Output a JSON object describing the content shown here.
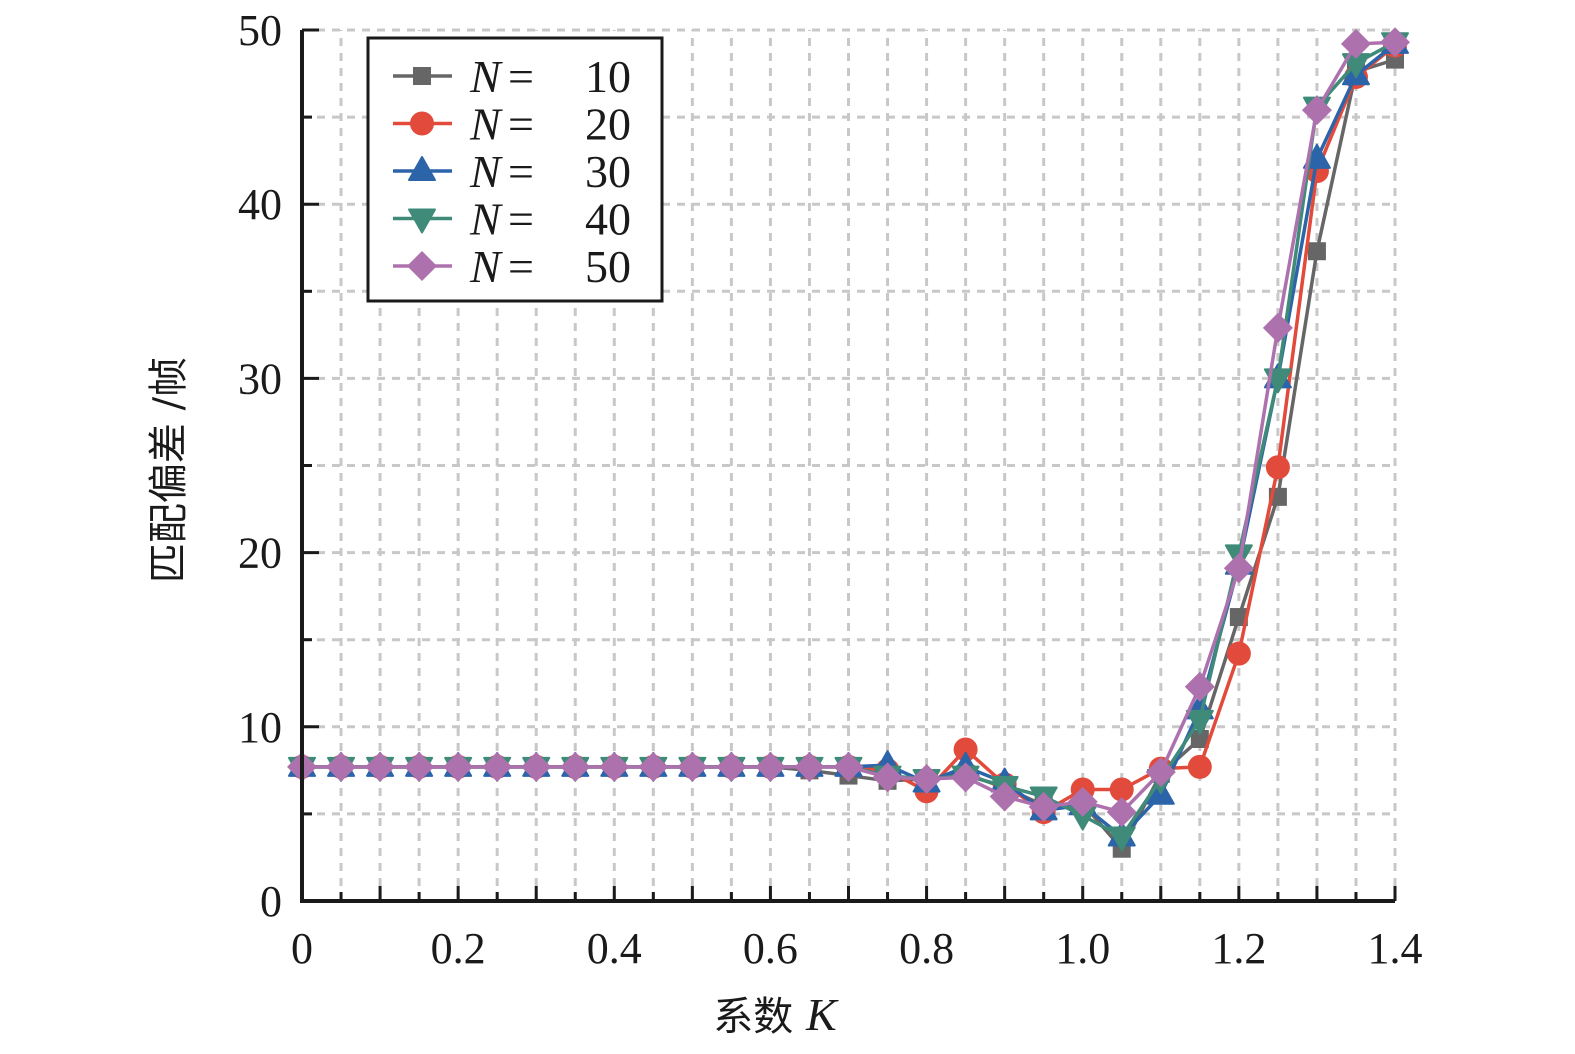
{
  "chart_data": {
    "type": "line",
    "title": "",
    "xlabel": "系数 K",
    "xlabel_parts": {
      "text": "系数 ",
      "var": "K"
    },
    "ylabel": "匹配偏差 /帧",
    "xlim": [
      0,
      1.4
    ],
    "ylim": [
      0,
      50
    ],
    "grid": true,
    "legend_position": "top-left",
    "x_ticks": [
      "0",
      "0.2",
      "0.4",
      "0.6",
      "0.8",
      "1.0",
      "1.2",
      "1.4"
    ],
    "x_tick_values": [
      0,
      0.2,
      0.4,
      0.6,
      0.8,
      1.0,
      1.2,
      1.4
    ],
    "y_ticks": [
      "0",
      "10",
      "20",
      "30",
      "40",
      "50"
    ],
    "y_tick_values": [
      0,
      10,
      20,
      30,
      40,
      50
    ],
    "x": [
      0,
      0.05,
      0.1,
      0.15,
      0.2,
      0.25,
      0.3,
      0.35,
      0.4,
      0.45,
      0.5,
      0.55,
      0.6,
      0.65,
      0.7,
      0.75,
      0.8,
      0.85,
      0.9,
      0.95,
      1.0,
      1.05,
      1.1,
      1.15,
      1.2,
      1.25,
      1.3,
      1.35,
      1.4
    ],
    "series": [
      {
        "name": "N = 10",
        "var": "N",
        "eq": "=",
        "num": "10",
        "color": "#666666",
        "marker": "square",
        "values": [
          7.7,
          7.7,
          7.7,
          7.7,
          7.7,
          7.7,
          7.7,
          7.7,
          7.7,
          7.7,
          7.7,
          7.7,
          7.7,
          7.5,
          7.2,
          6.9,
          7.0,
          7.3,
          6.5,
          5.5,
          5.6,
          3.0,
          7.3,
          9.3,
          16.3,
          23.2,
          37.3,
          47.6,
          48.3
        ]
      },
      {
        "name": "N = 20",
        "var": "N",
        "eq": "=",
        "num": "20",
        "color": "#e24a3b",
        "marker": "circle",
        "values": [
          7.7,
          7.7,
          7.7,
          7.7,
          7.7,
          7.7,
          7.7,
          7.7,
          7.7,
          7.7,
          7.7,
          7.7,
          7.7,
          7.7,
          7.7,
          7.5,
          6.3,
          8.7,
          6.7,
          5.1,
          6.4,
          6.4,
          7.6,
          7.7,
          14.2,
          24.9,
          41.9,
          47.3,
          49.1
        ]
      },
      {
        "name": "N = 30",
        "var": "N",
        "eq": "=",
        "num": "30",
        "color": "#2c64aa",
        "marker": "triangle-up",
        "values": [
          7.7,
          7.7,
          7.7,
          7.7,
          7.7,
          7.7,
          7.7,
          7.7,
          7.7,
          7.7,
          7.7,
          7.7,
          7.7,
          7.7,
          7.7,
          7.8,
          6.8,
          7.7,
          6.8,
          5.2,
          5.5,
          3.7,
          6.1,
          11.0,
          19.3,
          30.0,
          42.6,
          47.4,
          49.2
        ]
      },
      {
        "name": "N = 40",
        "var": "N",
        "eq": "=",
        "num": "40",
        "color": "#3f8a78",
        "marker": "triangle-down",
        "values": [
          7.7,
          7.7,
          7.7,
          7.7,
          7.7,
          7.7,
          7.7,
          7.7,
          7.7,
          7.7,
          7.7,
          7.7,
          7.7,
          7.7,
          7.7,
          7.2,
          7.0,
          7.2,
          6.6,
          6.0,
          4.9,
          3.7,
          7.0,
          10.4,
          19.9,
          30.0,
          45.6,
          48.1,
          49.3
        ]
      },
      {
        "name": "N = 50",
        "var": "N",
        "eq": "=",
        "num": "50",
        "color": "#ad72ad",
        "marker": "diamond",
        "values": [
          7.7,
          7.7,
          7.7,
          7.7,
          7.7,
          7.7,
          7.7,
          7.7,
          7.7,
          7.7,
          7.7,
          7.7,
          7.7,
          7.7,
          7.7,
          7.1,
          7.0,
          7.1,
          6.0,
          5.4,
          5.7,
          5.1,
          7.4,
          12.3,
          19.1,
          32.9,
          45.4,
          49.2,
          49.3
        ]
      }
    ]
  }
}
